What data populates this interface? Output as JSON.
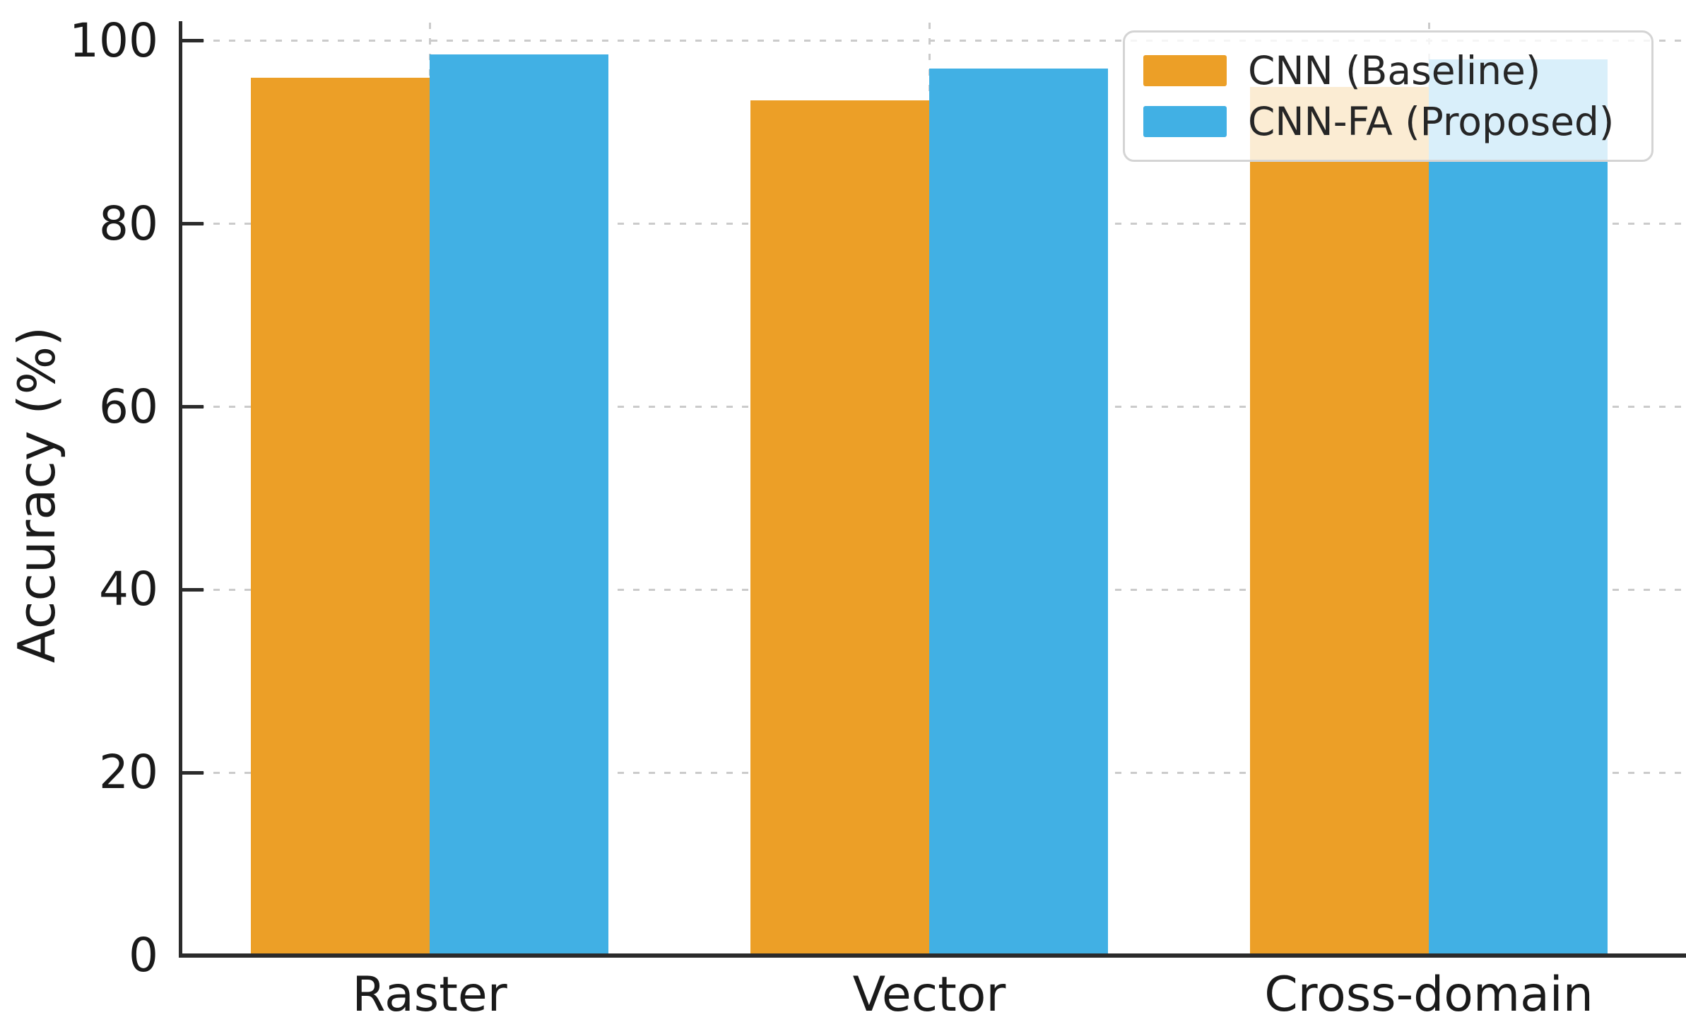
{
  "chart_data": {
    "type": "bar",
    "title": "",
    "categories": [
      "Raster",
      "Vector",
      "Cross-domain"
    ],
    "series": [
      {
        "name": "CNN (Baseline)",
        "color": "#EC9F27",
        "values": [
          96,
          93.5,
          95
        ]
      },
      {
        "name": "CNN-FA (Proposed)",
        "color": "#41B0E4",
        "values": [
          98.5,
          97,
          98
        ]
      }
    ],
    "xlabel": "",
    "ylabel": "Accuracy (%)",
    "yticks": [
      0,
      20,
      40,
      60,
      80,
      100
    ],
    "ytick_labels": [
      "0",
      "20",
      "40",
      "60",
      "80",
      "100"
    ],
    "ylim": [
      0,
      102
    ],
    "grid": "dashed",
    "grid_color": "#cbcbcb",
    "axis_color": "#2b2b2b",
    "legend_position": "upper right"
  }
}
